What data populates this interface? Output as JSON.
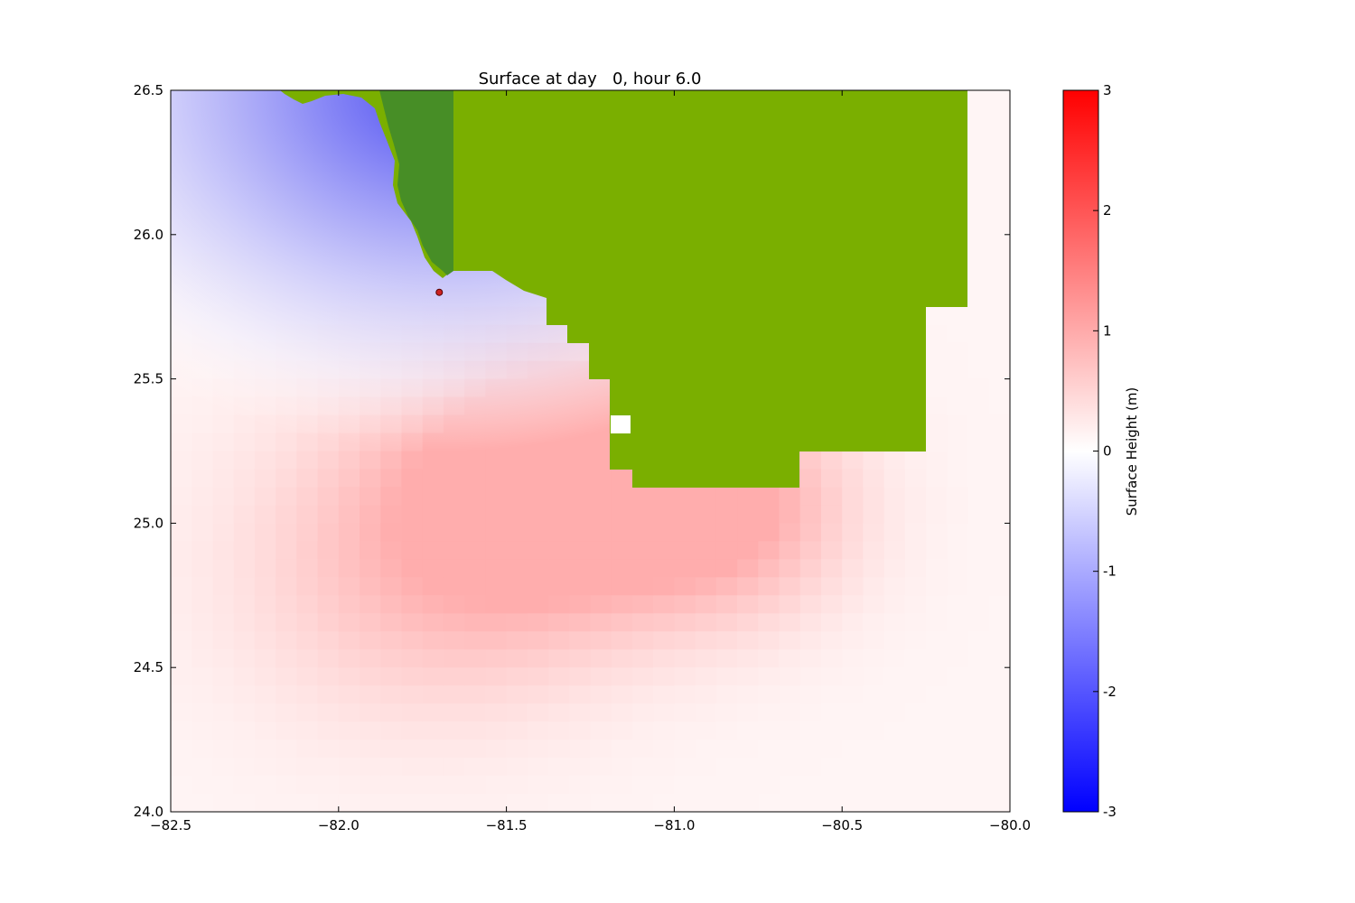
{
  "chart_data": {
    "type": "heatmap",
    "title": "Surface at day   0, hour 6.0",
    "xlabel": "",
    "ylabel": "",
    "xlim": [
      -82.5,
      -80.0
    ],
    "ylim": [
      24.0,
      26.5
    ],
    "x_ticks": [
      "−82.5",
      "−82.0",
      "−81.5",
      "−81.0",
      "−80.5",
      "−80.0"
    ],
    "x_tick_values": [
      -82.5,
      -82.0,
      -81.5,
      -81.0,
      -80.5,
      -80.0
    ],
    "y_ticks": [
      "24.0",
      "24.5",
      "25.0",
      "25.5",
      "26.0",
      "26.5"
    ],
    "y_tick_values": [
      24.0,
      24.5,
      25.0,
      25.5,
      26.0,
      26.5
    ],
    "colorbar": {
      "label": "Surface Height (m)",
      "range": [
        -3,
        3
      ],
      "ticks": [
        "3",
        "2",
        "1",
        "0",
        "-1",
        "-2",
        "-3"
      ],
      "tick_values": [
        3,
        2,
        1,
        0,
        -1,
        -2,
        -3
      ],
      "colormap": "bwr",
      "color_low": "#0000ff",
      "color_mid": "#ffffff",
      "color_high": "#ff0000"
    },
    "land_color": "#7aaf00",
    "land_color_dark": "#3f8a22",
    "gauge_marker": {
      "lon": -81.7,
      "lat": 25.8,
      "color": "#cc2222"
    }
  }
}
